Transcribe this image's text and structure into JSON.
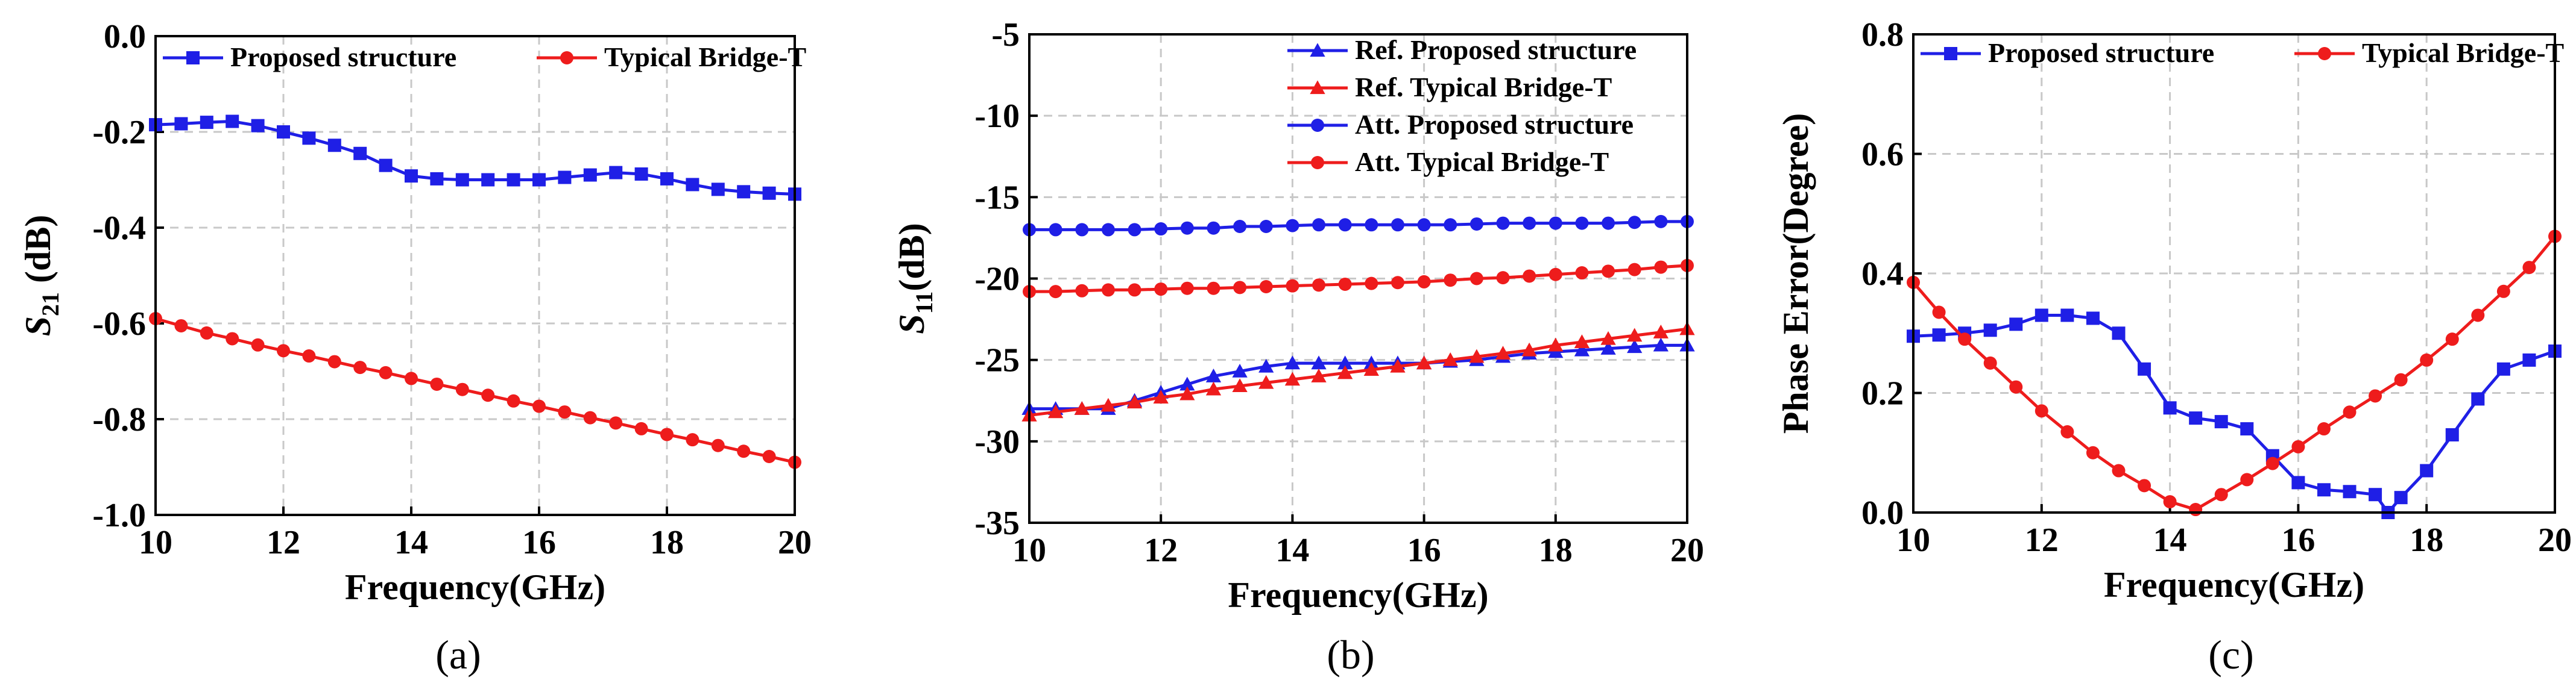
{
  "colors": {
    "blue": "#1f1fe6",
    "red": "#ee1c1c"
  },
  "chart_data": [
    {
      "type": "line",
      "caption": "(a)",
      "xlabel": "Frequency(GHz)",
      "ylabel": {
        "main": "S",
        "sub": "21",
        "rest": " (dB)"
      },
      "xlim": [
        10,
        20
      ],
      "ylim": [
        -1.0,
        0.0
      ],
      "xticks": [
        "10",
        "12",
        "14",
        "16",
        "18",
        "20"
      ],
      "yticks": [
        "-1.0",
        "-0.8",
        "-0.6",
        "-0.4",
        "-0.2",
        "0.0"
      ],
      "grid": true,
      "legend_placement": "top, single row",
      "series": [
        {
          "name": "Proposed structure",
          "color": "blue",
          "marker": "square",
          "points": [
            [
              10.0,
              -0.185
            ],
            [
              10.4,
              -0.183
            ],
            [
              10.8,
              -0.18
            ],
            [
              11.2,
              -0.178
            ],
            [
              11.6,
              -0.187
            ],
            [
              12.0,
              -0.2
            ],
            [
              12.4,
              -0.213
            ],
            [
              12.8,
              -0.228
            ],
            [
              13.2,
              -0.245
            ],
            [
              13.6,
              -0.27
            ],
            [
              14.0,
              -0.292
            ],
            [
              14.4,
              -0.298
            ],
            [
              14.8,
              -0.3
            ],
            [
              15.2,
              -0.3
            ],
            [
              15.6,
              -0.3
            ],
            [
              16.0,
              -0.3
            ],
            [
              16.4,
              -0.295
            ],
            [
              16.8,
              -0.29
            ],
            [
              17.2,
              -0.285
            ],
            [
              17.6,
              -0.288
            ],
            [
              18.0,
              -0.298
            ],
            [
              18.4,
              -0.31
            ],
            [
              18.8,
              -0.32
            ],
            [
              19.2,
              -0.325
            ],
            [
              19.6,
              -0.328
            ],
            [
              20.0,
              -0.33
            ]
          ]
        },
        {
          "name": "Typical Bridge-T",
          "color": "red",
          "marker": "circle",
          "points": [
            [
              10.0,
              -0.59
            ],
            [
              10.4,
              -0.605
            ],
            [
              10.8,
              -0.62
            ],
            [
              11.2,
              -0.632
            ],
            [
              11.6,
              -0.645
            ],
            [
              12.0,
              -0.657
            ],
            [
              12.4,
              -0.668
            ],
            [
              12.8,
              -0.68
            ],
            [
              13.2,
              -0.692
            ],
            [
              13.6,
              -0.703
            ],
            [
              14.0,
              -0.715
            ],
            [
              14.4,
              -0.727
            ],
            [
              14.8,
              -0.738
            ],
            [
              15.2,
              -0.75
            ],
            [
              15.6,
              -0.762
            ],
            [
              16.0,
              -0.773
            ],
            [
              16.4,
              -0.785
            ],
            [
              16.8,
              -0.797
            ],
            [
              17.2,
              -0.808
            ],
            [
              17.6,
              -0.82
            ],
            [
              18.0,
              -0.832
            ],
            [
              18.4,
              -0.843
            ],
            [
              18.8,
              -0.855
            ],
            [
              19.2,
              -0.867
            ],
            [
              19.6,
              -0.878
            ],
            [
              20.0,
              -0.89
            ]
          ]
        }
      ]
    },
    {
      "type": "line",
      "caption": "(b)",
      "xlabel": "Frequency(GHz)",
      "ylabel": {
        "main": "S",
        "sub": "11",
        "rest": "(dB)"
      },
      "xlim": [
        10,
        20
      ],
      "ylim": [
        -35,
        -5
      ],
      "xticks": [
        "10",
        "12",
        "14",
        "16",
        "18",
        "20"
      ],
      "yticks": [
        "-35",
        "-30",
        "-25",
        "-20",
        "-15",
        "-10",
        "-5"
      ],
      "grid": true,
      "legend_placement": "top-right",
      "series": [
        {
          "name": "Ref. Proposed structure",
          "color": "blue",
          "marker": "triangle",
          "points": [
            [
              10.0,
              -28.0
            ],
            [
              10.4,
              -28.0
            ],
            [
              10.8,
              -28.0
            ],
            [
              11.2,
              -28.0
            ],
            [
              11.6,
              -27.5
            ],
            [
              12.0,
              -27.0
            ],
            [
              12.4,
              -26.5
            ],
            [
              12.8,
              -26.0
            ],
            [
              13.2,
              -25.7
            ],
            [
              13.6,
              -25.4
            ],
            [
              14.0,
              -25.2
            ],
            [
              14.4,
              -25.2
            ],
            [
              14.8,
              -25.2
            ],
            [
              15.2,
              -25.2
            ],
            [
              15.6,
              -25.2
            ],
            [
              16.0,
              -25.2
            ],
            [
              16.4,
              -25.1
            ],
            [
              16.8,
              -25.0
            ],
            [
              17.2,
              -24.8
            ],
            [
              17.6,
              -24.6
            ],
            [
              18.0,
              -24.5
            ],
            [
              18.4,
              -24.4
            ],
            [
              18.8,
              -24.3
            ],
            [
              19.2,
              -24.2
            ],
            [
              19.6,
              -24.1
            ],
            [
              20.0,
              -24.1
            ]
          ]
        },
        {
          "name": "Ref. Typical Bridge-T",
          "color": "red",
          "marker": "triangle",
          "points": [
            [
              10.0,
              -28.4
            ],
            [
              10.4,
              -28.2
            ],
            [
              10.8,
              -28.0
            ],
            [
              11.2,
              -27.8
            ],
            [
              11.6,
              -27.6
            ],
            [
              12.0,
              -27.3
            ],
            [
              12.4,
              -27.1
            ],
            [
              12.8,
              -26.8
            ],
            [
              13.2,
              -26.6
            ],
            [
              13.6,
              -26.4
            ],
            [
              14.0,
              -26.2
            ],
            [
              14.4,
              -26.0
            ],
            [
              14.8,
              -25.8
            ],
            [
              15.2,
              -25.6
            ],
            [
              15.6,
              -25.4
            ],
            [
              16.0,
              -25.2
            ],
            [
              16.4,
              -25.0
            ],
            [
              16.8,
              -24.8
            ],
            [
              17.2,
              -24.6
            ],
            [
              17.6,
              -24.4
            ],
            [
              18.0,
              -24.1
            ],
            [
              18.4,
              -23.9
            ],
            [
              18.8,
              -23.7
            ],
            [
              19.2,
              -23.5
            ],
            [
              19.6,
              -23.3
            ],
            [
              20.0,
              -23.1
            ]
          ]
        },
        {
          "name": "Att. Proposed structure",
          "color": "blue",
          "marker": "circle",
          "points": [
            [
              10.0,
              -17.0
            ],
            [
              10.4,
              -17.0
            ],
            [
              10.8,
              -17.0
            ],
            [
              11.2,
              -17.0
            ],
            [
              11.6,
              -17.0
            ],
            [
              12.0,
              -16.95
            ],
            [
              12.4,
              -16.9
            ],
            [
              12.8,
              -16.9
            ],
            [
              13.2,
              -16.8
            ],
            [
              13.6,
              -16.8
            ],
            [
              14.0,
              -16.75
            ],
            [
              14.4,
              -16.7
            ],
            [
              14.8,
              -16.7
            ],
            [
              15.2,
              -16.7
            ],
            [
              15.6,
              -16.7
            ],
            [
              16.0,
              -16.7
            ],
            [
              16.4,
              -16.7
            ],
            [
              16.8,
              -16.65
            ],
            [
              17.2,
              -16.6
            ],
            [
              17.6,
              -16.6
            ],
            [
              18.0,
              -16.6
            ],
            [
              18.4,
              -16.6
            ],
            [
              18.8,
              -16.6
            ],
            [
              19.2,
              -16.55
            ],
            [
              19.6,
              -16.5
            ],
            [
              20.0,
              -16.5
            ]
          ]
        },
        {
          "name": "Att. Typical Bridge-T",
          "color": "red",
          "marker": "circle",
          "points": [
            [
              10.0,
              -20.8
            ],
            [
              10.4,
              -20.8
            ],
            [
              10.8,
              -20.75
            ],
            [
              11.2,
              -20.7
            ],
            [
              11.6,
              -20.7
            ],
            [
              12.0,
              -20.65
            ],
            [
              12.4,
              -20.6
            ],
            [
              12.8,
              -20.6
            ],
            [
              13.2,
              -20.55
            ],
            [
              13.6,
              -20.5
            ],
            [
              14.0,
              -20.45
            ],
            [
              14.4,
              -20.4
            ],
            [
              14.8,
              -20.35
            ],
            [
              15.2,
              -20.3
            ],
            [
              15.6,
              -20.25
            ],
            [
              16.0,
              -20.2
            ],
            [
              16.4,
              -20.1
            ],
            [
              16.8,
              -20.0
            ],
            [
              17.2,
              -19.95
            ],
            [
              17.6,
              -19.85
            ],
            [
              18.0,
              -19.75
            ],
            [
              18.4,
              -19.65
            ],
            [
              18.8,
              -19.55
            ],
            [
              19.2,
              -19.45
            ],
            [
              19.6,
              -19.3
            ],
            [
              20.0,
              -19.2
            ]
          ]
        }
      ]
    },
    {
      "type": "line",
      "caption": "(c)",
      "xlabel": "Frequency(GHz)",
      "ylabel": {
        "main": "Phase Error(Degree)",
        "sub": "",
        "rest": ""
      },
      "xlim": [
        10,
        20
      ],
      "ylim": [
        0.0,
        0.8
      ],
      "xticks": [
        "10",
        "12",
        "14",
        "16",
        "18",
        "20"
      ],
      "yticks": [
        "0.0",
        "0.2",
        "0.4",
        "0.6",
        "0.8"
      ],
      "grid": true,
      "legend_placement": "top, single row",
      "series": [
        {
          "name": "Proposed structure",
          "color": "blue",
          "marker": "square",
          "points": [
            [
              10.0,
              0.295
            ],
            [
              10.4,
              0.297
            ],
            [
              10.8,
              0.3
            ],
            [
              11.2,
              0.305
            ],
            [
              11.6,
              0.315
            ],
            [
              12.0,
              0.33
            ],
            [
              12.4,
              0.33
            ],
            [
              12.8,
              0.325
            ],
            [
              13.2,
              0.3
            ],
            [
              13.6,
              0.24
            ],
            [
              14.0,
              0.175
            ],
            [
              14.4,
              0.158
            ],
            [
              14.8,
              0.152
            ],
            [
              15.2,
              0.14
            ],
            [
              15.6,
              0.095
            ],
            [
              16.0,
              0.05
            ],
            [
              16.4,
              0.038
            ],
            [
              16.8,
              0.035
            ],
            [
              17.2,
              0.03
            ],
            [
              17.4,
              0.0
            ],
            [
              17.6,
              0.025
            ],
            [
              18.0,
              0.07
            ],
            [
              18.4,
              0.13
            ],
            [
              18.8,
              0.19
            ],
            [
              19.2,
              0.24
            ],
            [
              19.6,
              0.255
            ],
            [
              20.0,
              0.27
            ]
          ]
        },
        {
          "name": "Typical Bridge-T",
          "color": "red",
          "marker": "circle",
          "points": [
            [
              10.0,
              0.385
            ],
            [
              10.4,
              0.335
            ],
            [
              10.8,
              0.29
            ],
            [
              11.2,
              0.25
            ],
            [
              11.6,
              0.21
            ],
            [
              12.0,
              0.17
            ],
            [
              12.4,
              0.135
            ],
            [
              12.8,
              0.1
            ],
            [
              13.2,
              0.07
            ],
            [
              13.6,
              0.045
            ],
            [
              14.0,
              0.018
            ],
            [
              14.4,
              0.005
            ],
            [
              14.8,
              0.03
            ],
            [
              15.2,
              0.055
            ],
            [
              15.6,
              0.082
            ],
            [
              16.0,
              0.11
            ],
            [
              16.4,
              0.14
            ],
            [
              16.8,
              0.168
            ],
            [
              17.2,
              0.195
            ],
            [
              17.6,
              0.222
            ],
            [
              18.0,
              0.255
            ],
            [
              18.4,
              0.29
            ],
            [
              18.8,
              0.33
            ],
            [
              19.2,
              0.37
            ],
            [
              19.6,
              0.41
            ],
            [
              20.0,
              0.462
            ]
          ]
        }
      ]
    }
  ]
}
